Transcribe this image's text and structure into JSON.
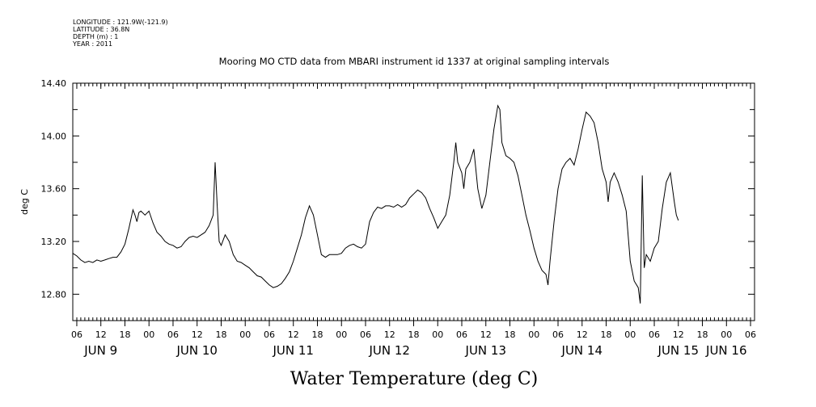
{
  "header": {
    "longitude": "LONGITUDE : 121.9W(-121.9)",
    "latitude": "LATITUDE : 36.8N",
    "depth": "DEPTH (m) : 1",
    "year": "YEAR : 2011"
  },
  "chart_data": {
    "type": "line",
    "title": "Mooring MO CTD data from MBARI instrument id 1337 at original sampling intervals",
    "xlabel": "Water Temperature (deg C)",
    "ylabel": "deg C",
    "x_unit": "hours since JUN 9 00:00",
    "xlim": [
      -7,
      163
    ],
    "ylim": [
      12.6,
      14.4
    ],
    "yticks": [
      "12.80",
      "13.20",
      "13.60",
      "14.00",
      "14.40"
    ],
    "ytick_values": [
      12.8,
      13.2,
      13.6,
      14.0,
      14.4
    ],
    "hour_ticks": [
      {
        "t": -6,
        "label": "06"
      },
      {
        "t": 0,
        "label": "12"
      },
      {
        "t": 6,
        "label": "18"
      },
      {
        "t": 12,
        "label": "00"
      },
      {
        "t": 18,
        "label": "06"
      },
      {
        "t": 24,
        "label": "12"
      },
      {
        "t": 30,
        "label": "18"
      },
      {
        "t": 36,
        "label": "00"
      },
      {
        "t": 42,
        "label": "06"
      },
      {
        "t": 48,
        "label": "12"
      },
      {
        "t": 54,
        "label": "18"
      },
      {
        "t": 60,
        "label": "00"
      },
      {
        "t": 66,
        "label": "06"
      },
      {
        "t": 72,
        "label": "12"
      },
      {
        "t": 78,
        "label": "18"
      },
      {
        "t": 84,
        "label": "00"
      },
      {
        "t": 90,
        "label": "06"
      },
      {
        "t": 96,
        "label": "12"
      },
      {
        "t": 102,
        "label": "18"
      },
      {
        "t": 108,
        "label": "00"
      },
      {
        "t": 114,
        "label": "06"
      },
      {
        "t": 120,
        "label": "12"
      },
      {
        "t": 126,
        "label": "18"
      },
      {
        "t": 132,
        "label": "00"
      },
      {
        "t": 138,
        "label": "06"
      },
      {
        "t": 144,
        "label": "12"
      },
      {
        "t": 150,
        "label": "18"
      },
      {
        "t": 156,
        "label": "00"
      },
      {
        "t": 162,
        "label": "06"
      }
    ],
    "day_labels": [
      {
        "t": 0,
        "label": "JUN  9"
      },
      {
        "t": 24,
        "label": "JUN 10"
      },
      {
        "t": 48,
        "label": "JUN 11"
      },
      {
        "t": 72,
        "label": "JUN 12"
      },
      {
        "t": 96,
        "label": "JUN 13"
      },
      {
        "t": 120,
        "label": "JUN 14"
      },
      {
        "t": 144,
        "label": "JUN 15"
      },
      {
        "t": 156,
        "label": "JUN 16"
      }
    ],
    "grid": false,
    "series": [
      {
        "color": "#000000",
        "points": [
          [
            -7,
            13.11
          ],
          [
            -6,
            13.09
          ],
          [
            -5,
            13.06
          ],
          [
            -4,
            13.04
          ],
          [
            -3,
            13.05
          ],
          [
            -2,
            13.04
          ],
          [
            -1,
            13.06
          ],
          [
            0,
            13.05
          ],
          [
            1,
            13.06
          ],
          [
            2,
            13.07
          ],
          [
            3,
            13.08
          ],
          [
            4,
            13.08
          ],
          [
            5,
            13.12
          ],
          [
            6,
            13.18
          ],
          [
            7,
            13.3
          ],
          [
            8,
            13.44
          ],
          [
            8.5,
            13.4
          ],
          [
            9,
            13.35
          ],
          [
            9.5,
            13.42
          ],
          [
            10,
            13.43
          ],
          [
            11,
            13.4
          ],
          [
            12,
            13.43
          ],
          [
            13,
            13.34
          ],
          [
            14,
            13.27
          ],
          [
            15,
            13.24
          ],
          [
            16,
            13.2
          ],
          [
            17,
            13.18
          ],
          [
            18,
            13.17
          ],
          [
            19,
            13.15
          ],
          [
            20,
            13.16
          ],
          [
            21,
            13.2
          ],
          [
            22,
            13.23
          ],
          [
            23,
            13.24
          ],
          [
            24,
            13.23
          ],
          [
            25,
            13.25
          ],
          [
            26,
            13.27
          ],
          [
            27,
            13.32
          ],
          [
            28,
            13.4
          ],
          [
            28.5,
            13.8
          ],
          [
            29,
            13.48
          ],
          [
            29.5,
            13.2
          ],
          [
            30,
            13.17
          ],
          [
            31,
            13.25
          ],
          [
            32,
            13.2
          ],
          [
            33,
            13.1
          ],
          [
            34,
            13.05
          ],
          [
            35,
            13.04
          ],
          [
            36,
            13.02
          ],
          [
            37,
            13.0
          ],
          [
            38,
            12.97
          ],
          [
            39,
            12.94
          ],
          [
            40,
            12.93
          ],
          [
            41,
            12.9
          ],
          [
            42,
            12.87
          ],
          [
            43,
            12.85
          ],
          [
            44,
            12.86
          ],
          [
            45,
            12.88
          ],
          [
            46,
            12.92
          ],
          [
            47,
            12.97
          ],
          [
            48,
            13.05
          ],
          [
            49,
            13.15
          ],
          [
            50,
            13.25
          ],
          [
            51,
            13.38
          ],
          [
            52,
            13.47
          ],
          [
            53,
            13.4
          ],
          [
            54,
            13.25
          ],
          [
            55,
            13.1
          ],
          [
            56,
            13.08
          ],
          [
            57,
            13.1
          ],
          [
            58,
            13.1
          ],
          [
            59,
            13.1
          ],
          [
            60,
            13.11
          ],
          [
            61,
            13.15
          ],
          [
            62,
            13.17
          ],
          [
            63,
            13.18
          ],
          [
            64,
            13.16
          ],
          [
            65,
            13.15
          ],
          [
            66,
            13.18
          ],
          [
            67,
            13.35
          ],
          [
            68,
            13.42
          ],
          [
            69,
            13.46
          ],
          [
            70,
            13.45
          ],
          [
            71,
            13.47
          ],
          [
            72,
            13.47
          ],
          [
            73,
            13.46
          ],
          [
            74,
            13.48
          ],
          [
            75,
            13.46
          ],
          [
            76,
            13.48
          ],
          [
            77,
            13.53
          ],
          [
            78,
            13.56
          ],
          [
            79,
            13.59
          ],
          [
            80,
            13.57
          ],
          [
            81,
            13.53
          ],
          [
            82,
            13.45
          ],
          [
            83,
            13.38
          ],
          [
            84,
            13.3
          ],
          [
            85,
            13.35
          ],
          [
            86,
            13.4
          ],
          [
            87,
            13.55
          ],
          [
            88,
            13.8
          ],
          [
            88.5,
            13.95
          ],
          [
            89,
            13.8
          ],
          [
            90,
            13.72
          ],
          [
            90.5,
            13.6
          ],
          [
            91,
            13.75
          ],
          [
            92,
            13.8
          ],
          [
            93,
            13.9
          ],
          [
            94,
            13.6
          ],
          [
            95,
            13.45
          ],
          [
            96,
            13.55
          ],
          [
            97,
            13.8
          ],
          [
            98,
            14.05
          ],
          [
            99,
            14.23
          ],
          [
            99.5,
            14.2
          ],
          [
            100,
            13.95
          ],
          [
            101,
            13.85
          ],
          [
            102,
            13.83
          ],
          [
            103,
            13.8
          ],
          [
            104,
            13.7
          ],
          [
            105,
            13.55
          ],
          [
            106,
            13.4
          ],
          [
            107,
            13.28
          ],
          [
            108,
            13.15
          ],
          [
            109,
            13.05
          ],
          [
            110,
            12.98
          ],
          [
            111,
            12.95
          ],
          [
            111.5,
            12.87
          ],
          [
            112,
            13.05
          ],
          [
            113,
            13.35
          ],
          [
            114,
            13.6
          ],
          [
            115,
            13.75
          ],
          [
            116,
            13.8
          ],
          [
            117,
            13.83
          ],
          [
            118,
            13.78
          ],
          [
            119,
            13.9
          ],
          [
            120,
            14.05
          ],
          [
            121,
            14.18
          ],
          [
            122,
            14.15
          ],
          [
            123,
            14.1
          ],
          [
            124,
            13.95
          ],
          [
            125,
            13.75
          ],
          [
            126,
            13.65
          ],
          [
            126.5,
            13.5
          ],
          [
            127,
            13.65
          ],
          [
            128,
            13.72
          ],
          [
            129,
            13.65
          ],
          [
            130,
            13.55
          ],
          [
            131,
            13.43
          ],
          [
            132,
            13.05
          ],
          [
            133,
            12.9
          ],
          [
            134,
            12.85
          ],
          [
            134.5,
            12.73
          ],
          [
            135,
            13.7
          ],
          [
            135.5,
            13.0
          ],
          [
            136,
            13.1
          ],
          [
            137,
            13.05
          ],
          [
            138,
            13.15
          ],
          [
            139,
            13.2
          ],
          [
            140,
            13.45
          ],
          [
            141,
            13.65
          ],
          [
            142,
            13.72
          ],
          [
            143,
            13.5
          ],
          [
            143.5,
            13.4
          ],
          [
            144,
            13.36
          ]
        ]
      }
    ]
  }
}
